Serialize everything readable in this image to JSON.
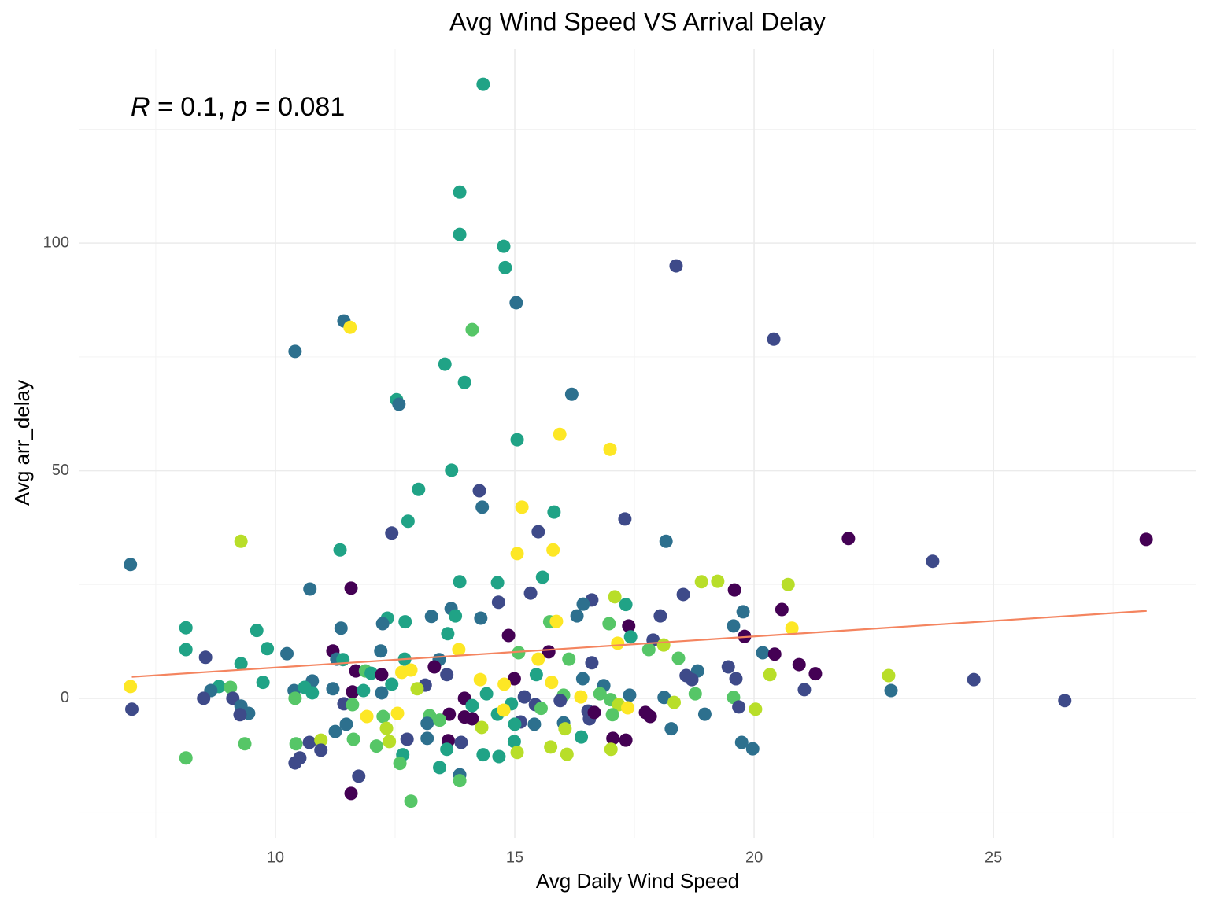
{
  "chart_data": {
    "type": "scatter",
    "title": "Avg Wind Speed VS Arrival Delay",
    "x_label": "Avg Daily Wind Speed",
    "y_label": "Avg arr_delay",
    "annotation": [
      "R",
      " = 0.1, ",
      "p",
      " = 0.081"
    ],
    "xlim": [
      5.89,
      29.24
    ],
    "ylim": [
      -30.6,
      142.7
    ],
    "xticks": [
      10,
      15,
      20,
      25
    ],
    "yticks": [
      0,
      50,
      100
    ],
    "x_minor_ticks": [
      7.5,
      12.5,
      17.5,
      22.5,
      27.5
    ],
    "y_minor_ticks": [
      -25,
      25,
      75,
      125
    ],
    "grid": true,
    "x": [
      14.34,
      13.85,
      13.85,
      14.77,
      14.8,
      18.37,
      15.03,
      11.43,
      11.56,
      14.11,
      20.41,
      10.41,
      13.54,
      13.95,
      16.19,
      12.53,
      12.58,
      15.05,
      15.94,
      16.99,
      13.68,
      12.99,
      14.26,
      15.15,
      14.32,
      15.82,
      17.3,
      12.77,
      12.43,
      15.49,
      9.28,
      18.16,
      21.97,
      28.19,
      6.97,
      11.35,
      15.05,
      15.8,
      23.73,
      10.72,
      11.58,
      13.85,
      14.64,
      15.58,
      18.9,
      19.24,
      20.71,
      19.59,
      15.33,
      16.61,
      18.52,
      17.09,
      17.32,
      13.67,
      14.66,
      16.43,
      20.58,
      19.77,
      13.26,
      13.76,
      14.29,
      16.3,
      18.04,
      12.34,
      12.71,
      12.24,
      8.13,
      15.73,
      15.87,
      17.38,
      11.37,
      9.61,
      19.57,
      20.79,
      16.97,
      13.6,
      14.87,
      19.8,
      17.42,
      17.89,
      17.15,
      18.11,
      17.8,
      8.13,
      9.83,
      10.24,
      13.83,
      15.71,
      15.08,
      12.2,
      11.2,
      20.18,
      20.43,
      8.54,
      11.28,
      11.41,
      12.7,
      13.42,
      15.49,
      16.13,
      16.61,
      18.42,
      19.46,
      20.94,
      9.28,
      11.68,
      11.88,
      12.0,
      12.22,
      13.32,
      13.58,
      14.99,
      15.45,
      18.82,
      18.58,
      18.7,
      20.33,
      21.28,
      22.81,
      24.59,
      19.62,
      12.64,
      12.83,
      14.28,
      16.42,
      10.77,
      6.97,
      8.82,
      9.06,
      9.74,
      12.43,
      13.13,
      12.96,
      14.78,
      15.77,
      16.86,
      21.05,
      22.86,
      10.39,
      10.61,
      10.77,
      8.65,
      11.2,
      11.61,
      11.84,
      12.22,
      14.41,
      15.2,
      16.02,
      16.78,
      17.4,
      18.12,
      18.77,
      19.57,
      26.49,
      10.41,
      8.5,
      9.11,
      11.43,
      11.61,
      13.95,
      14.11,
      14.93,
      15.43,
      15.95,
      16.38,
      17.0,
      17.17,
      17.36,
      18.33,
      19.68,
      7.0,
      9.28,
      9.44,
      9.26,
      11.91,
      12.25,
      12.55,
      13.22,
      13.63,
      13.95,
      14.11,
      14.64,
      14.77,
      15.12,
      15.55,
      16.53,
      16.56,
      16.66,
      17.04,
      17.73,
      17.83,
      18.97,
      20.03,
      13.17,
      13.43,
      14.31,
      15.0,
      15.41,
      16.02,
      16.05,
      11.48,
      11.25,
      12.32,
      12.75,
      13.17,
      13.61,
      13.88,
      14.99,
      16.39,
      17.05,
      17.32,
      18.27,
      19.74,
      19.97,
      9.36,
      10.43,
      10.71,
      10.95,
      10.95,
      11.63,
      12.11,
      12.38,
      13.58,
      15.05,
      15.75,
      16.09,
      17.01,
      14.34,
      14.67,
      12.66,
      8.13,
      10.51,
      10.41,
      12.6,
      13.43,
      13.85,
      13.85,
      11.74,
      11.58,
      12.83
    ],
    "values": [
      134.9,
      111.2,
      101.9,
      99.3,
      94.6,
      95.0,
      86.9,
      82.9,
      81.5,
      81.0,
      78.9,
      76.2,
      73.4,
      69.4,
      66.8,
      65.6,
      64.6,
      56.8,
      58.0,
      54.7,
      50.1,
      45.9,
      45.6,
      42.0,
      42.0,
      40.9,
      39.4,
      38.9,
      36.3,
      36.6,
      34.5,
      34.5,
      35.1,
      34.9,
      29.4,
      32.6,
      31.8,
      32.6,
      30.1,
      24.0,
      24.2,
      25.6,
      25.4,
      26.6,
      25.6,
      25.7,
      25.0,
      23.8,
      23.1,
      21.6,
      22.8,
      22.3,
      20.6,
      19.7,
      21.1,
      20.7,
      19.5,
      19.0,
      18.0,
      18.1,
      17.6,
      18.1,
      18.1,
      17.6,
      16.8,
      16.4,
      15.5,
      16.8,
      16.9,
      15.9,
      15.4,
      14.9,
      15.9,
      15.4,
      16.4,
      14.2,
      13.8,
      13.6,
      13.5,
      12.8,
      12.1,
      11.7,
      10.7,
      10.7,
      10.9,
      9.8,
      10.7,
      10.2,
      10.0,
      10.4,
      10.4,
      10.0,
      9.7,
      9.0,
      8.6,
      8.5,
      8.6,
      8.5,
      8.6,
      8.6,
      7.8,
      8.8,
      6.9,
      7.4,
      7.6,
      6.0,
      6.0,
      5.5,
      5.2,
      6.9,
      5.2,
      4.3,
      5.2,
      6.0,
      5.0,
      4.1,
      5.2,
      5.4,
      5.0,
      4.1,
      4.3,
      5.7,
      6.2,
      4.1,
      4.3,
      3.8,
      2.6,
      2.6,
      2.4,
      3.5,
      3.1,
      2.9,
      2.1,
      3.1,
      3.5,
      2.8,
      1.9,
      1.7,
      1.7,
      2.4,
      1.2,
      1.7,
      2.1,
      1.4,
      1.7,
      1.2,
      1.0,
      0.3,
      0.7,
      1.0,
      0.7,
      0.2,
      1.0,
      0.2,
      -0.5,
      0,
      0,
      0,
      -1.2,
      -1.4,
      0.0,
      -1.6,
      -1.2,
      -1.4,
      -0.5,
      0.3,
      -0.3,
      -1.4,
      -2.1,
      -0.9,
      -1.9,
      -2.4,
      -1.7,
      -3.3,
      -3.6,
      -4.0,
      -4.0,
      -3.3,
      -3.8,
      -3.5,
      -4.1,
      -4.5,
      -3.5,
      -2.6,
      -5.2,
      -2.2,
      -2.8,
      -4.5,
      -3.1,
      -3.6,
      -3.1,
      -4.0,
      -3.5,
      -2.4,
      -5.5,
      -4.8,
      -6.4,
      -5.7,
      -5.7,
      -5.4,
      -6.7,
      -5.7,
      -7.3,
      -6.6,
      -9.0,
      -8.8,
      -9.3,
      -9.7,
      -9.5,
      -8.5,
      -8.8,
      -9.2,
      -6.7,
      -9.7,
      -11.1,
      -10.0,
      -10.0,
      -9.7,
      -9.2,
      -11.4,
      -9.0,
      -10.5,
      -9.5,
      -11.2,
      -11.9,
      -10.7,
      -12.3,
      -11.2,
      -12.4,
      -12.8,
      -12.4,
      -13.1,
      -13.1,
      -14.2,
      -14.3,
      -15.2,
      -16.8,
      -18.1,
      -17.1,
      -20.9,
      -22.6
    ],
    "colors": [
      "#20a386",
      "#20a386",
      "#20a386",
      "#20a386",
      "#20a386",
      "#3e4a89",
      "#2d708e",
      "#2d708e",
      "#fde725",
      "#56c667",
      "#3e4a89",
      "#2d708e",
      "#20a386",
      "#20a386",
      "#2d708e",
      "#20a386",
      "#2d708e",
      "#20a386",
      "#fde725",
      "#fde725",
      "#20a386",
      "#20a386",
      "#3e4a89",
      "#fde725",
      "#2d708e",
      "#20a386",
      "#3e4a89",
      "#20a386",
      "#3e4a89",
      "#3e4a89",
      "#b8de29",
      "#2d708e",
      "#440154",
      "#440154",
      "#2d708e",
      "#20a386",
      "#fde725",
      "#fde725",
      "#3e4a89",
      "#2d708e",
      "#440154",
      "#20a386",
      "#20a386",
      "#20a386",
      "#b8de29",
      "#b8de29",
      "#b8de29",
      "#440154",
      "#3e4a89",
      "#3e4a89",
      "#3e4a89",
      "#b8de29",
      "#20a386",
      "#2d708e",
      "#3e4a89",
      "#2d708e",
      "#440154",
      "#2d708e",
      "#2d708e",
      "#20a386",
      "#2d708e",
      "#2d708e",
      "#3e4a89",
      "#20a386",
      "#20a386",
      "#2d708e",
      "#20a386",
      "#56c667",
      "#fde725",
      "#440154",
      "#2d708e",
      "#20a386",
      "#2d708e",
      "#fde725",
      "#56c667",
      "#20a386",
      "#440154",
      "#440154",
      "#20a386",
      "#3e4a89",
      "#fde725",
      "#b8de29",
      "#56c667",
      "#20a386",
      "#20a386",
      "#2d708e",
      "#fde725",
      "#440154",
      "#56c667",
      "#2d708e",
      "#440154",
      "#2d708e",
      "#440154",
      "#3e4a89",
      "#2d708e",
      "#20a386",
      "#20a386",
      "#2d708e",
      "#fde725",
      "#56c667",
      "#3e4a89",
      "#56c667",
      "#3e4a89",
      "#440154",
      "#20a386",
      "#440154",
      "#56c667",
      "#20a386",
      "#440154",
      "#440154",
      "#3e4a89",
      "#440154",
      "#20a386",
      "#2d708e",
      "#3e4a89",
      "#3e4a89",
      "#b8de29",
      "#440154",
      "#b8de29",
      "#3e4a89",
      "#3e4a89",
      "#fde725",
      "#fde725",
      "#fde725",
      "#2d708e",
      "#2d708e",
      "#fde725",
      "#20a386",
      "#56c667",
      "#20a386",
      "#20a386",
      "#3e4a89",
      "#b8de29",
      "#fde725",
      "#fde725",
      "#2d708e",
      "#3e4a89",
      "#2d708e",
      "#2d708e",
      "#20a386",
      "#20a386",
      "#2d708e",
      "#2d708e",
      "#440154",
      "#20a386",
      "#2d708e",
      "#20a386",
      "#3e4a89",
      "#56c667",
      "#56c667",
      "#2d708e",
      "#2d708e",
      "#56c667",
      "#56c667",
      "#3e4a89",
      "#56c667",
      "#3e4a89",
      "#3e4a89",
      "#3e4a89",
      "#56c667",
      "#440154",
      "#20a386",
      "#20a386",
      "#3e4a89",
      "#3e4a89",
      "#fde725",
      "#56c667",
      "#b8de29",
      "#fde725",
      "#b8de29",
      "#3e4a89",
      "#3e4a89",
      "#2d708e",
      "#2d708e",
      "#3e4a89",
      "#fde725",
      "#56c667",
      "#fde725",
      "#56c667",
      "#440154",
      "#440154",
      "#440154",
      "#20a386",
      "#fde725",
      "#3e4a89",
      "#56c667",
      "#3e4a89",
      "#3e4a89",
      "#440154",
      "#56c667",
      "#440154",
      "#440154",
      "#2d708e",
      "#b8de29",
      "#2d708e",
      "#56c667",
      "#b8de29",
      "#20a386",
      "#2d708e",
      "#2d708e",
      "#b8de29",
      "#2d708e",
      "#2d708e",
      "#b8de29",
      "#3e4a89",
      "#2d708e",
      "#440154",
      "#3e4a89",
      "#20a386",
      "#20a386",
      "#440154",
      "#440154",
      "#2d708e",
      "#2d708e",
      "#2d708e",
      "#56c667",
      "#56c667",
      "#3e4a89",
      "#b8de29",
      "#3e4a89",
      "#56c667",
      "#56c667",
      "#b8de29",
      "#20a386",
      "#b8de29",
      "#b8de29",
      "#b8de29",
      "#b8de29",
      "#20a386",
      "#20a386",
      "#20a386",
      "#56c667",
      "#3e4a89",
      "#3e4a89",
      "#56c667",
      "#20a386",
      "#2d708e",
      "#56c667",
      "#3e4a89",
      "#440154",
      "#56c667"
    ],
    "trend": {
      "type": "line",
      "x": [
        7.0,
        28.2
      ],
      "values": [
        4.7,
        19.2
      ],
      "color": "#f4845f"
    }
  }
}
